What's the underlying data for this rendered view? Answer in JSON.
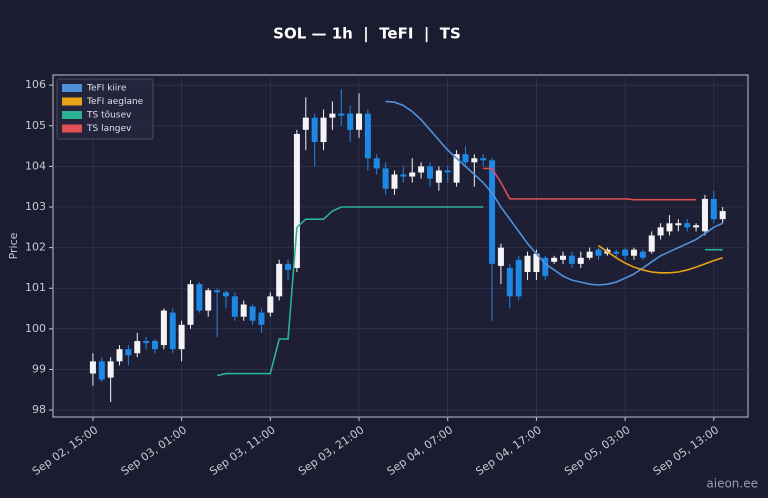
{
  "chart_data": {
    "type": "candlestick",
    "title": "SOL — 1h  |  TeFI  |  TS",
    "y_label": "Price",
    "watermark": "aieon.ee",
    "categories": [
      "Sep 02, 15:00",
      null,
      null,
      null,
      null,
      null,
      null,
      null,
      null,
      null,
      "Sep 03, 01:00",
      null,
      null,
      null,
      null,
      null,
      null,
      null,
      null,
      null,
      "Sep 03, 11:00",
      null,
      null,
      null,
      null,
      null,
      null,
      null,
      null,
      null,
      "Sep 03, 21:00",
      null,
      null,
      null,
      null,
      null,
      null,
      null,
      null,
      null,
      "Sep 04, 07:00",
      null,
      null,
      null,
      null,
      null,
      null,
      null,
      null,
      null,
      "Sep 04, 17:00",
      null,
      null,
      null,
      null,
      null,
      null,
      null,
      null,
      null,
      "Sep 05, 03:00",
      null,
      null,
      null,
      null,
      null,
      null,
      null,
      null,
      null,
      "Sep 05, 13:00",
      null
    ],
    "open": [
      98.9,
      99.2,
      98.8,
      99.2,
      99.5,
      99.4,
      99.7,
      99.7,
      99.6,
      100.4,
      99.5,
      100.1,
      101.1,
      100.45,
      100.95,
      100.9,
      100.8,
      100.3,
      100.55,
      100.4,
      100.4,
      100.8,
      101.6,
      101.5,
      104.9,
      105.2,
      104.6,
      105.2,
      105.3,
      105.3,
      104.9,
      105.3,
      104.2,
      103.95,
      103.45,
      103.8,
      103.75,
      103.85,
      104.0,
      103.6,
      103.9,
      103.6,
      104.3,
      104.1,
      104.2,
      104.15,
      101.55,
      101.5,
      101.7,
      101.4,
      101.4,
      101.75,
      101.65,
      101.7,
      101.8,
      101.6,
      101.75,
      101.95,
      101.85,
      101.9,
      101.95,
      101.8,
      101.9,
      101.9,
      102.3,
      102.4,
      102.55,
      102.6,
      102.5,
      102.4,
      103.2,
      102.7
    ],
    "high": [
      99.4,
      99.3,
      99.3,
      99.6,
      99.6,
      99.9,
      99.8,
      99.75,
      100.5,
      100.5,
      100.2,
      101.2,
      101.15,
      101.0,
      101.0,
      100.95,
      100.9,
      100.7,
      100.6,
      100.5,
      100.9,
      101.7,
      101.7,
      104.9,
      105.7,
      105.3,
      105.4,
      105.6,
      105.9,
      105.5,
      105.8,
      105.4,
      104.3,
      104.1,
      103.9,
      104.0,
      104.2,
      104.1,
      104.1,
      104.0,
      104.0,
      104.4,
      104.5,
      104.3,
      104.3,
      104.2,
      102.1,
      101.6,
      101.8,
      101.9,
      101.95,
      101.8,
      101.8,
      101.9,
      101.9,
      101.9,
      102.0,
      102.0,
      102.0,
      101.95,
      102.0,
      102.0,
      101.95,
      102.4,
      102.6,
      102.8,
      102.7,
      102.7,
      102.6,
      103.3,
      103.4,
      103.0
    ],
    "low": [
      98.6,
      98.7,
      98.2,
      99.1,
      99.1,
      99.3,
      99.5,
      99.4,
      99.5,
      99.4,
      99.2,
      100.0,
      100.4,
      100.3,
      99.8,
      100.5,
      100.2,
      100.2,
      100.1,
      99.9,
      100.3,
      100.7,
      101.2,
      101.4,
      104.4,
      104.0,
      104.4,
      104.9,
      105.0,
      104.6,
      104.7,
      103.9,
      103.8,
      103.3,
      103.3,
      103.6,
      103.6,
      103.7,
      103.5,
      103.4,
      103.6,
      103.5,
      104.0,
      103.5,
      104.0,
      100.2,
      101.1,
      100.5,
      100.7,
      101.2,
      101.2,
      101.2,
      101.6,
      101.6,
      101.5,
      101.5,
      101.7,
      101.7,
      101.8,
      101.75,
      101.7,
      101.7,
      101.7,
      101.85,
      102.2,
      102.3,
      102.4,
      102.4,
      102.4,
      102.3,
      102.6,
      102.6
    ],
    "close": [
      99.2,
      98.75,
      99.2,
      99.5,
      99.35,
      99.7,
      99.65,
      99.5,
      100.45,
      99.5,
      100.1,
      101.1,
      100.45,
      100.95,
      100.9,
      100.8,
      100.3,
      100.6,
      100.2,
      100.1,
      100.8,
      101.6,
      101.45,
      104.8,
      105.2,
      104.6,
      105.2,
      105.3,
      105.25,
      104.9,
      105.3,
      104.2,
      103.95,
      103.45,
      103.8,
      103.75,
      103.85,
      104.0,
      103.7,
      103.9,
      103.85,
      104.3,
      104.1,
      104.2,
      104.15,
      101.6,
      102.0,
      100.8,
      100.8,
      101.8,
      101.85,
      101.3,
      101.75,
      101.8,
      101.6,
      101.75,
      101.9,
      101.8,
      101.95,
      101.85,
      101.8,
      101.95,
      101.75,
      102.3,
      102.5,
      102.6,
      102.6,
      102.5,
      102.55,
      103.2,
      102.7,
      102.9
    ],
    "up_color": "#f4f4f6",
    "down_color": "#1e88e5",
    "series": [
      {
        "name": "TeFI kiire",
        "color": "#4f92dc",
        "values": [
          null,
          null,
          null,
          null,
          null,
          null,
          null,
          null,
          null,
          null,
          null,
          null,
          null,
          null,
          null,
          null,
          null,
          null,
          null,
          null,
          null,
          null,
          null,
          null,
          null,
          null,
          null,
          null,
          null,
          null,
          null,
          null,
          null,
          105.6,
          105.58,
          105.5,
          105.35,
          105.15,
          104.9,
          104.65,
          104.4,
          104.2,
          104.0,
          103.8,
          103.6,
          103.35,
          103.0,
          102.7,
          102.4,
          102.1,
          101.85,
          101.6,
          101.45,
          101.3,
          101.2,
          101.15,
          101.1,
          101.08,
          101.1,
          101.15,
          101.25,
          101.35,
          101.5,
          101.65,
          101.8,
          101.9,
          102.0,
          102.1,
          102.2,
          102.35,
          102.5,
          102.6
        ]
      },
      {
        "name": "TeFI aeglane",
        "color": "#e8a317",
        "values": [
          null,
          null,
          null,
          null,
          null,
          null,
          null,
          null,
          null,
          null,
          null,
          null,
          null,
          null,
          null,
          null,
          null,
          null,
          null,
          null,
          null,
          null,
          null,
          null,
          null,
          null,
          null,
          null,
          null,
          null,
          null,
          null,
          null,
          null,
          null,
          null,
          null,
          null,
          null,
          null,
          null,
          null,
          null,
          null,
          null,
          null,
          null,
          null,
          null,
          null,
          null,
          null,
          null,
          null,
          null,
          null,
          null,
          102.05,
          101.9,
          101.75,
          101.62,
          101.52,
          101.45,
          101.4,
          101.38,
          101.38,
          101.4,
          101.45,
          101.52,
          101.6,
          101.68,
          101.75
        ]
      },
      {
        "name": "TS tõusev",
        "color": "#2bb391",
        "values": [
          null,
          null,
          null,
          null,
          null,
          null,
          null,
          null,
          null,
          null,
          null,
          null,
          null,
          null,
          98.85,
          98.9,
          98.9,
          98.9,
          98.9,
          98.9,
          98.9,
          99.75,
          99.75,
          102.5,
          102.7,
          102.7,
          102.7,
          102.9,
          103.0,
          103.0,
          103.0,
          103.0,
          103.0,
          103.0,
          103.0,
          103.0,
          103.0,
          103.0,
          103.0,
          103.0,
          103.0,
          103.0,
          103.0,
          103.0,
          103.0,
          null,
          null,
          null,
          null,
          null,
          null,
          null,
          null,
          null,
          null,
          null,
          null,
          null,
          null,
          null,
          null,
          null,
          null,
          null,
          null,
          null,
          null,
          null,
          null,
          101.95,
          101.95,
          101.95
        ]
      },
      {
        "name": "TS langev",
        "color": "#e05055",
        "values": [
          null,
          null,
          null,
          null,
          null,
          null,
          null,
          null,
          null,
          null,
          null,
          null,
          null,
          null,
          null,
          null,
          null,
          null,
          null,
          null,
          null,
          null,
          null,
          null,
          null,
          null,
          null,
          null,
          null,
          null,
          null,
          null,
          null,
          null,
          null,
          null,
          null,
          null,
          null,
          null,
          null,
          null,
          null,
          null,
          103.95,
          103.95,
          103.6,
          103.2,
          103.2,
          103.2,
          103.2,
          103.2,
          103.2,
          103.2,
          103.2,
          103.2,
          103.2,
          103.2,
          103.2,
          103.2,
          103.2,
          103.18,
          103.18,
          103.18,
          103.18,
          103.18,
          103.18,
          103.18,
          103.18,
          null,
          null,
          null
        ]
      }
    ],
    "ylim": [
      97.83,
      106.25
    ],
    "yticks": [
      98,
      99,
      100,
      101,
      102,
      103,
      104,
      105,
      106
    ],
    "grid": true,
    "legend": "upper-left"
  }
}
